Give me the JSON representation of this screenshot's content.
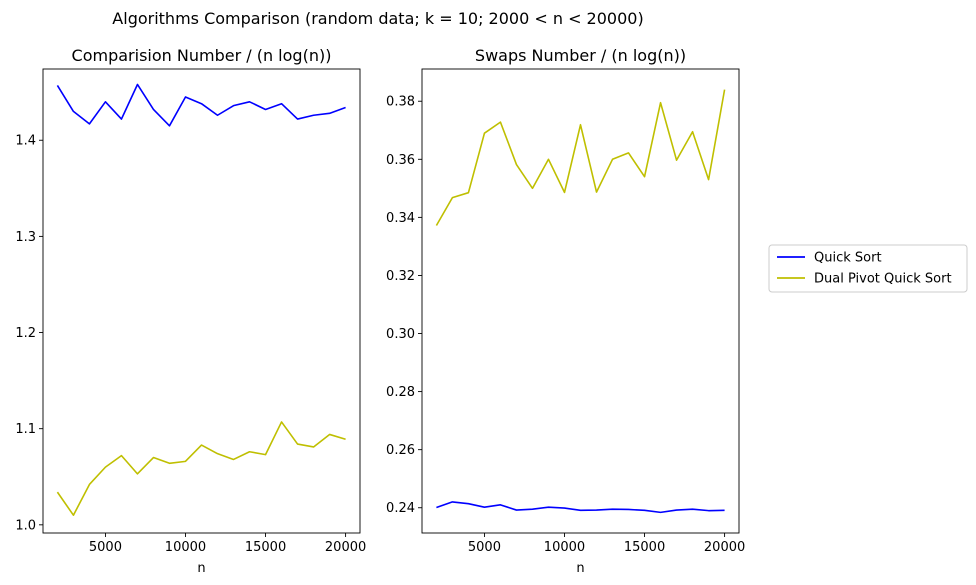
{
  "figure": {
    "title": "Algorithms Comparison (random data;  k = 10;  2000 < n < 20000)"
  },
  "legend": {
    "placement": "right",
    "entries": [
      {
        "name": "Quick Sort",
        "color": "#0000ff"
      },
      {
        "name": "Dual Pivot Quick Sort",
        "color": "#bfbf00"
      }
    ]
  },
  "chart_data": [
    {
      "type": "line",
      "title": "Comparision Number / (n log(n))",
      "xlabel": "n",
      "ylabel": "",
      "xlim": [
        1100,
        20900
      ],
      "ylim": [
        0.9915,
        1.4741
      ],
      "x_ticks": [
        5000,
        10000,
        15000,
        20000
      ],
      "y_ticks": [
        1.0,
        1.1,
        1.2,
        1.3,
        1.4
      ],
      "x_tick_labels": [
        "5000",
        "10000",
        "15000",
        "20000"
      ],
      "y_tick_labels": [
        "1.0",
        "1.1",
        "1.2",
        "1.3",
        "1.4"
      ],
      "grid": false,
      "x": [
        2000,
        3000,
        4000,
        5000,
        6000,
        7000,
        8000,
        9000,
        10000,
        11000,
        12000,
        13000,
        14000,
        15000,
        16000,
        17000,
        18000,
        19000,
        20000
      ],
      "series": [
        {
          "name": "Quick Sort",
          "color": "#0000ff",
          "values": [
            1.457,
            1.43,
            1.417,
            1.44,
            1.422,
            1.458,
            1.432,
            1.415,
            1.445,
            1.438,
            1.426,
            1.436,
            1.44,
            1.432,
            1.438,
            1.422,
            1.426,
            1.428,
            1.434
          ]
        },
        {
          "name": "Dual Pivot Quick Sort",
          "color": "#bfbf00",
          "values": [
            1.034,
            1.01,
            1.042,
            1.06,
            1.072,
            1.053,
            1.07,
            1.064,
            1.066,
            1.083,
            1.074,
            1.068,
            1.076,
            1.073,
            1.107,
            1.084,
            1.081,
            1.094,
            1.089
          ]
        }
      ]
    },
    {
      "type": "line",
      "title": "Swaps Number / (n log(n))",
      "xlabel": "n",
      "ylabel": "",
      "xlim": [
        1100,
        20900
      ],
      "ylim": [
        0.2313,
        0.3911
      ],
      "x_ticks": [
        5000,
        10000,
        15000,
        20000
      ],
      "y_ticks": [
        0.24,
        0.26,
        0.28,
        0.3,
        0.32,
        0.34,
        0.36,
        0.38
      ],
      "x_tick_labels": [
        "5000",
        "10000",
        "15000",
        "20000"
      ],
      "y_tick_labels": [
        "0.24",
        "0.26",
        "0.28",
        "0.30",
        "0.32",
        "0.34",
        "0.36",
        "0.38"
      ],
      "grid": false,
      "x": [
        2000,
        3000,
        4000,
        5000,
        6000,
        7000,
        8000,
        9000,
        10000,
        11000,
        12000,
        13000,
        14000,
        15000,
        16000,
        17000,
        18000,
        19000,
        20000
      ],
      "series": [
        {
          "name": "Quick Sort",
          "color": "#0000ff",
          "values": [
            0.2401,
            0.242,
            0.2414,
            0.2402,
            0.241,
            0.2392,
            0.2395,
            0.2402,
            0.2399,
            0.2391,
            0.2392,
            0.2395,
            0.2394,
            0.2391,
            0.2384,
            0.2392,
            0.2395,
            0.239,
            0.2391
          ]
        },
        {
          "name": "Dual Pivot Quick Sort",
          "color": "#bfbf00",
          "values": [
            0.3372,
            0.3468,
            0.3485,
            0.369,
            0.3728,
            0.3582,
            0.35,
            0.36,
            0.3486,
            0.3719,
            0.3487,
            0.36,
            0.3622,
            0.354,
            0.3795,
            0.3597,
            0.3695,
            0.353,
            0.384
          ]
        }
      ]
    }
  ]
}
